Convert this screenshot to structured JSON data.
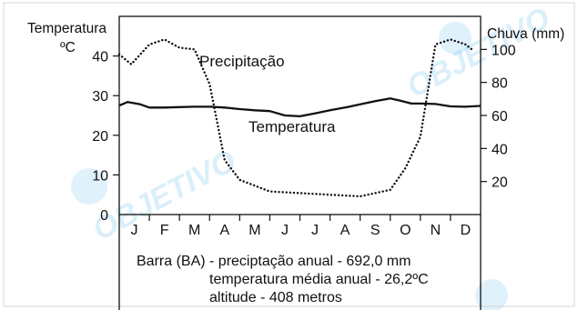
{
  "chart_data": {
    "type": "line",
    "categories": [
      "J",
      "F",
      "M",
      "A",
      "M",
      "J",
      "J",
      "A",
      "S",
      "O",
      "N",
      "D"
    ],
    "y_left": {
      "label_line1": "Temperatura",
      "label_line2": "ºC",
      "range": [
        0,
        50
      ],
      "ticks": [
        0,
        10,
        20,
        30,
        40
      ]
    },
    "y_right": {
      "label": "Chuva (mm)",
      "range": [
        0,
        120
      ],
      "ticks": [
        20,
        40,
        60,
        80,
        100
      ]
    },
    "series": [
      {
        "name": "Temperatura",
        "axis": "left",
        "style": "solid",
        "x": [
          0.0,
          0.28,
          0.7,
          1.0,
          1.5,
          2.0,
          2.5,
          3.0,
          3.5,
          4.0,
          4.5,
          5.0,
          5.5,
          6.0,
          6.5,
          7.0,
          7.5,
          8.0,
          8.5,
          9.0,
          9.35,
          9.7,
          10.0,
          10.5,
          11.0,
          11.5,
          12.0
        ],
        "values": [
          27.5,
          28.4,
          27.8,
          27.0,
          27.0,
          27.1,
          27.2,
          27.2,
          27.0,
          26.6,
          26.3,
          26.1,
          25.0,
          24.8,
          25.5,
          26.3,
          27.0,
          27.8,
          28.6,
          29.3,
          28.7,
          28.0,
          28.0,
          27.9,
          27.3,
          27.2,
          27.4
        ]
      },
      {
        "name": "Precipitação",
        "axis": "right",
        "style": "dotted",
        "x": [
          0.0,
          0.4,
          1.0,
          1.5,
          2.0,
          2.5,
          3.0,
          3.5,
          4.0,
          5.0,
          6.0,
          7.0,
          8.0,
          9.0,
          9.5,
          10.0,
          10.5,
          11.0,
          11.5,
          11.78
        ],
        "values": [
          97,
          91,
          103,
          106,
          101,
          100,
          79,
          33,
          21,
          14,
          13,
          12,
          11,
          15,
          28,
          47,
          103,
          106,
          103,
          99
        ]
      }
    ]
  },
  "annotations": {
    "precip_label": "Precipitação",
    "temp_label": "Temperatura"
  },
  "caption": {
    "line1": "Barra (BA) - preciptação anual - 692,0 mm",
    "line2": "temperatura média anual - 26,2ºC",
    "line3": "altitude - 408 metros"
  },
  "watermark": "OBJETIVO"
}
